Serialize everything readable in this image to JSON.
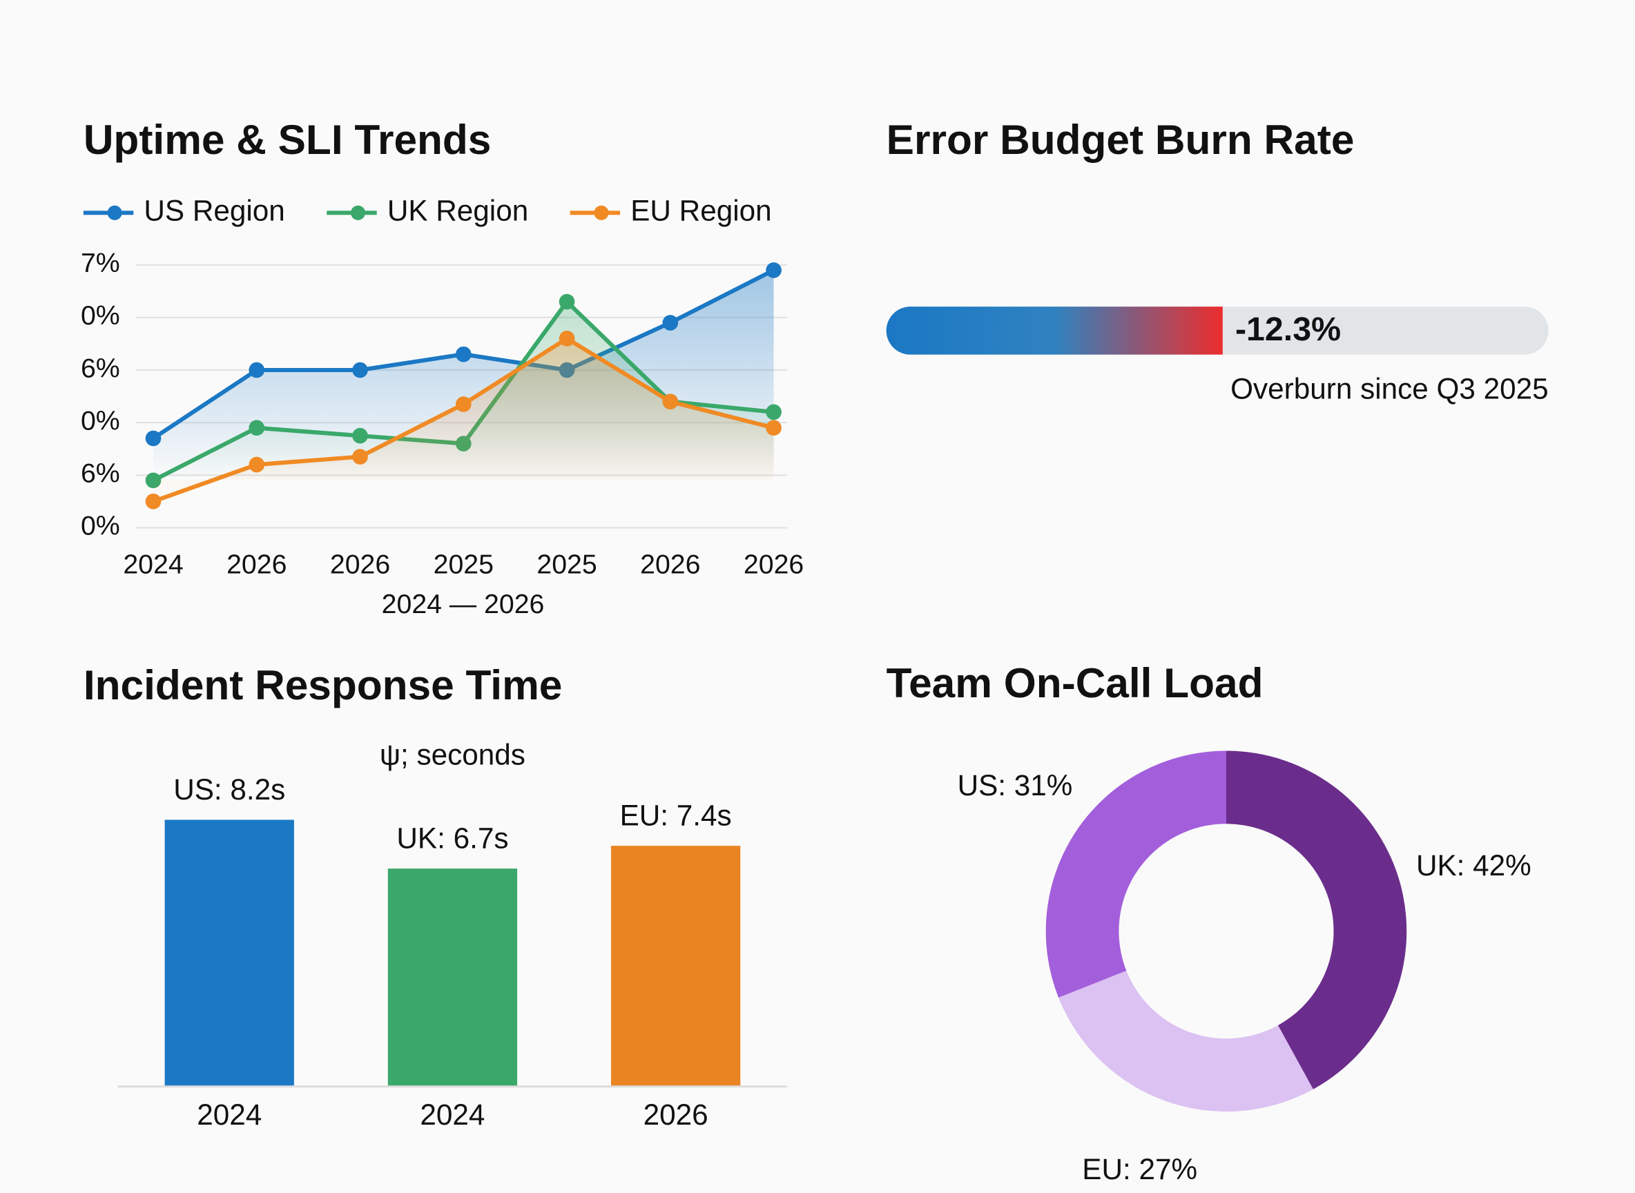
{
  "chart_data": [
    {
      "type": "line",
      "title": "Uptime & SLI Trends",
      "x_label": "2024 — 2026",
      "categories": [
        "2024",
        "2026",
        "2026",
        "2025",
        "2025",
        "2026",
        "2026"
      ],
      "series": [
        {
          "name": "US Region",
          "color": "#1b78c4",
          "values": [
            1.7,
            3.0,
            3.0,
            3.3,
            3.0,
            3.9,
            4.9
          ]
        },
        {
          "name": "UK Region",
          "color": "#3aa86a",
          "values": [
            0.9,
            1.9,
            1.75,
            1.6,
            4.3,
            2.4,
            2.2
          ]
        },
        {
          "name": "EU Region",
          "color": "#f08a24",
          "values": [
            0.5,
            1.2,
            1.35,
            2.35,
            3.6,
            2.4,
            1.9
          ]
        }
      ],
      "ylim": [
        0,
        5
      ],
      "yticks": [
        {
          "value": 0,
          "label": "0%"
        },
        {
          "value": 1,
          "label": "6%"
        },
        {
          "value": 2,
          "label": "0%"
        },
        {
          "value": 3,
          "label": "6%"
        },
        {
          "value": 4,
          "label": "0%"
        },
        {
          "value": 5,
          "label": "7%"
        }
      ],
      "grid": true,
      "legend": "top"
    },
    {
      "type": "progress",
      "title": "Error Budget Burn Rate",
      "value": -12.3,
      "value_label": "-12.3%",
      "caption": "Overburn since Q3 2025",
      "xlim": [
        -25,
        0
      ]
    },
    {
      "type": "bar",
      "title": "Incident Response Time",
      "subtitle": "ψ; seconds",
      "categories": [
        "2024",
        "2024",
        "2026"
      ],
      "values": [
        8.2,
        6.7,
        7.4
      ],
      "value_labels": [
        "US: 8.2s",
        "UK: 6.7s",
        "EU: 7.4s"
      ],
      "colors": [
        "#1b78c4",
        "#3aa86a",
        "#ea8423"
      ],
      "ylim": [
        0,
        10
      ]
    },
    {
      "type": "donut",
      "title": "Team On-Call Load",
      "values": [
        42,
        27,
        31
      ],
      "value_labels": [
        "UK: 42%",
        "EU: 27%",
        "US: 31%"
      ],
      "colors": [
        "#6b2d8c",
        "#dcc2f2",
        "#a35fdb"
      ]
    }
  ]
}
